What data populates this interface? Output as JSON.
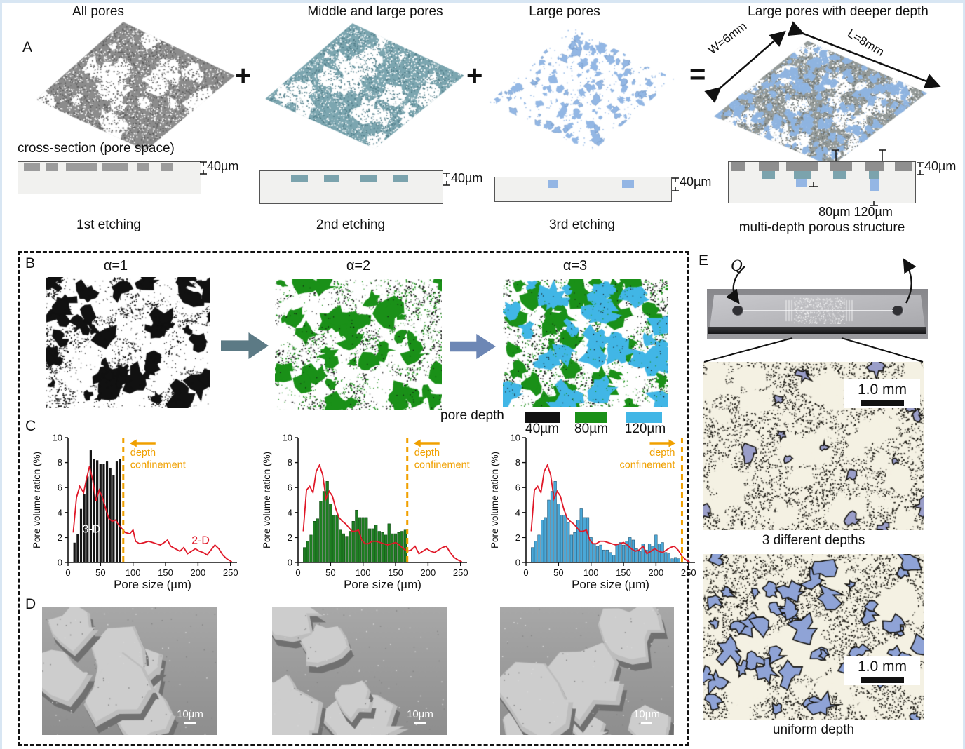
{
  "figure": {
    "panel_a": {
      "label": "A",
      "cross_section_heading": "cross-section (pore space)",
      "operators": [
        "+",
        "+",
        "="
      ],
      "columns": [
        {
          "title": "All pores",
          "etch_caption": "1st etching",
          "depth_label": "40µm"
        },
        {
          "title": "Middle and large pores",
          "etch_caption": "2nd etching",
          "depth_label": "40µm"
        },
        {
          "title": "Large pores",
          "etch_caption": "3rd etching",
          "depth_label": "40µm"
        },
        {
          "title": "Large pores with deeper depth",
          "etch_caption": "multi-depth porous structure",
          "depth_label": "40µm",
          "deep_labels": "80µm 120µm",
          "dim_w": "W=6mm",
          "dim_l": "L=8mm"
        }
      ]
    },
    "panel_b": {
      "label": "B",
      "map_titles": [
        "α=1",
        "α=2",
        "α=3"
      ],
      "legend_title": "pore depth",
      "legend": [
        {
          "label": "40µm",
          "color": "#111111"
        },
        {
          "label": "80µm",
          "color": "#1a9018"
        },
        {
          "label": "120µm",
          "color": "#41b6e6"
        }
      ]
    },
    "panel_c": {
      "label": "C"
    },
    "panel_d": {
      "label": "D",
      "scale_label": "10µm"
    },
    "panel_e": {
      "label": "E",
      "flow_label": "Q",
      "micrographs": [
        {
          "caption": "3 different depths",
          "scale_label": "1.0 mm"
        },
        {
          "caption": "uniform depth",
          "scale_label": "1.0 mm"
        }
      ]
    }
  },
  "chart_data": [
    {
      "type": "bar+line",
      "group": "α=1",
      "xlabel": "Pore size (µm)",
      "ylabel": "Pore volume ration (%)",
      "xlim": [
        0,
        260
      ],
      "ylim": [
        0,
        10
      ],
      "xticks": [
        0,
        50,
        100,
        150,
        200,
        250
      ],
      "yticks": [
        0,
        2,
        4,
        6,
        8,
        10
      ],
      "bar_color": "#161616",
      "bar_edge": "#ffffff",
      "bar_series_label": "3-D",
      "bar_x_start": 10,
      "bar_step": 5,
      "bar_values": [
        1.6,
        2.3,
        4.3,
        5.5,
        6.9,
        9.0,
        8.3,
        8.2,
        7.9,
        7.9,
        8.1,
        7.6,
        7.0,
        8.1,
        8.3
      ],
      "line_series_label": "2-D",
      "line_color": "#e01828",
      "line_points": [
        [
          8,
          2.4
        ],
        [
          13,
          5.2
        ],
        [
          18,
          6.1
        ],
        [
          24,
          5.6
        ],
        [
          28,
          6.6
        ],
        [
          33,
          7.7
        ],
        [
          38,
          6.6
        ],
        [
          43,
          4.9
        ],
        [
          48,
          5.8
        ],
        [
          53,
          5.2
        ],
        [
          58,
          4.3
        ],
        [
          63,
          3.5
        ],
        [
          68,
          3.3
        ],
        [
          73,
          3.4
        ],
        [
          78,
          3.0
        ],
        [
          83,
          2.7
        ],
        [
          88,
          2.4
        ],
        [
          95,
          2.3
        ],
        [
          100,
          2.6
        ],
        [
          104,
          1.7
        ],
        [
          110,
          1.5
        ],
        [
          118,
          1.6
        ],
        [
          124,
          1.7
        ],
        [
          130,
          1.6
        ],
        [
          136,
          1.5
        ],
        [
          142,
          1.4
        ],
        [
          148,
          1.6
        ],
        [
          153,
          1.8
        ],
        [
          158,
          1.3
        ],
        [
          165,
          1.1
        ],
        [
          172,
          0.9
        ],
        [
          178,
          1.2
        ],
        [
          184,
          0.7
        ],
        [
          190,
          0.9
        ],
        [
          196,
          1.1
        ],
        [
          202,
          0.9
        ],
        [
          208,
          0.8
        ],
        [
          214,
          0.6
        ],
        [
          220,
          1.0
        ],
        [
          226,
          1.4
        ],
        [
          232,
          1.1
        ],
        [
          238,
          0.6
        ],
        [
          244,
          0.3
        ],
        [
          252,
          0.05
        ]
      ],
      "confinement": {
        "x": 85,
        "label": "depth confinement",
        "arrow": "left",
        "color": "#f0a000"
      },
      "inline_labels": [
        {
          "text": "3-D",
          "x": 36,
          "y": 2.4,
          "color": "#ffffff"
        },
        {
          "text": "2-D",
          "x": 204,
          "y": 1.5,
          "color": "#e01828"
        }
      ]
    },
    {
      "type": "bar+line",
      "group": "α=2",
      "xlabel": "Pore size (µm)",
      "ylabel": "Pore volume ration (%)",
      "xlim": [
        0,
        260
      ],
      "ylim": [
        0,
        10
      ],
      "xticks": [
        0,
        50,
        100,
        150,
        200,
        250
      ],
      "yticks": [
        0,
        2,
        4,
        6,
        8,
        10
      ],
      "bar_color": "#1e7e22",
      "bar_edge": "#0c3f10",
      "bar_series_label": "3-D",
      "bar_x_start": 10,
      "bar_step": 5,
      "bar_values": [
        1.2,
        1.7,
        2.2,
        3.3,
        3.5,
        4.9,
        5.7,
        6.5,
        4.7,
        3.8,
        3.8,
        2.6,
        2.3,
        2.1,
        2.5,
        3.3,
        4.2,
        3.6,
        3.6,
        3.6,
        2.7,
        2.7,
        3.0,
        2.5,
        2.4,
        2.2,
        3.1,
        2.3,
        2.3,
        2.4,
        2.5,
        2.6
      ],
      "line_series_label": "2-D",
      "line_color": "#e01828",
      "line_points": [
        [
          8,
          2.5
        ],
        [
          13,
          5.8
        ],
        [
          18,
          6.1
        ],
        [
          23,
          5.6
        ],
        [
          28,
          7.3
        ],
        [
          33,
          7.8
        ],
        [
          38,
          7.0
        ],
        [
          43,
          5.1
        ],
        [
          48,
          5.7
        ],
        [
          53,
          5.3
        ],
        [
          58,
          4.3
        ],
        [
          63,
          3.6
        ],
        [
          68,
          3.3
        ],
        [
          73,
          3.1
        ],
        [
          78,
          2.8
        ],
        [
          83,
          2.5
        ],
        [
          88,
          2.5
        ],
        [
          93,
          2.6
        ],
        [
          98,
          1.8
        ],
        [
          103,
          1.5
        ],
        [
          108,
          1.5
        ],
        [
          114,
          1.7
        ],
        [
          120,
          1.7
        ],
        [
          126,
          1.6
        ],
        [
          132,
          1.5
        ],
        [
          138,
          1.4
        ],
        [
          144,
          1.5
        ],
        [
          150,
          1.6
        ],
        [
          156,
          1.4
        ],
        [
          162,
          1.1
        ],
        [
          168,
          0.9
        ],
        [
          174,
          1.0
        ],
        [
          180,
          1.3
        ],
        [
          186,
          0.7
        ],
        [
          192,
          0.9
        ],
        [
          198,
          1.1
        ],
        [
          204,
          0.9
        ],
        [
          210,
          0.8
        ],
        [
          216,
          1.0
        ],
        [
          222,
          1.2
        ],
        [
          228,
          1.3
        ],
        [
          234,
          0.8
        ],
        [
          240,
          0.4
        ],
        [
          246,
          0.2
        ],
        [
          252,
          0.05
        ]
      ],
      "confinement": {
        "x": 168,
        "label": "depth confinement",
        "arrow": "left",
        "color": "#f0a000"
      },
      "inline_labels": []
    },
    {
      "type": "bar+line",
      "group": "α=3",
      "xlabel": "Pore size (µm)",
      "ylabel": "Pore volume ration (%)",
      "xlim": [
        0,
        260
      ],
      "ylim": [
        0,
        10
      ],
      "xticks": [
        0,
        50,
        100,
        150,
        200,
        250
      ],
      "yticks": [
        0,
        2,
        4,
        6,
        8,
        10
      ],
      "bar_color": "#4aa8d8",
      "bar_edge": "#1b4a66",
      "bar_series_label": "3-D",
      "bar_x_start": 10,
      "bar_step": 5,
      "bar_values": [
        1.2,
        1.7,
        2.2,
        3.4,
        3.6,
        5.0,
        5.7,
        6.5,
        4.7,
        3.8,
        3.8,
        3.2,
        2.2,
        2.4,
        3.4,
        4.3,
        3.6,
        3.6,
        2.0,
        1.5,
        1.3,
        1.4,
        1.0,
        1.0,
        0.8,
        0.6,
        1.5,
        1.6,
        1.4,
        1.7,
        2.0,
        1.8,
        1.1,
        0.9,
        1.5,
        1.0,
        1.5,
        1.3,
        2.2,
        1.5,
        1.6,
        0.8,
        0.7,
        0.3,
        0.4,
        0.3
      ],
      "line_series_label": "2-D",
      "line_color": "#e01828",
      "line_points": [
        [
          8,
          2.5
        ],
        [
          13,
          5.8
        ],
        [
          18,
          6.1
        ],
        [
          23,
          5.6
        ],
        [
          28,
          7.3
        ],
        [
          33,
          7.8
        ],
        [
          38,
          7.0
        ],
        [
          43,
          5.1
        ],
        [
          48,
          5.7
        ],
        [
          53,
          5.3
        ],
        [
          58,
          4.3
        ],
        [
          63,
          3.6
        ],
        [
          68,
          3.3
        ],
        [
          73,
          3.1
        ],
        [
          78,
          2.8
        ],
        [
          83,
          2.5
        ],
        [
          88,
          2.5
        ],
        [
          93,
          2.6
        ],
        [
          98,
          1.8
        ],
        [
          103,
          1.5
        ],
        [
          108,
          1.5
        ],
        [
          114,
          1.7
        ],
        [
          120,
          1.7
        ],
        [
          126,
          1.6
        ],
        [
          132,
          1.5
        ],
        [
          138,
          1.4
        ],
        [
          144,
          1.5
        ],
        [
          150,
          1.6
        ],
        [
          156,
          1.4
        ],
        [
          162,
          1.1
        ],
        [
          168,
          0.9
        ],
        [
          174,
          1.0
        ],
        [
          180,
          1.3
        ],
        [
          186,
          0.7
        ],
        [
          192,
          0.9
        ],
        [
          198,
          1.1
        ],
        [
          204,
          0.9
        ],
        [
          210,
          0.8
        ],
        [
          216,
          1.0
        ],
        [
          222,
          1.2
        ],
        [
          228,
          1.3
        ],
        [
          234,
          1.0
        ],
        [
          240,
          0.5
        ],
        [
          246,
          0.2
        ],
        [
          252,
          0.02
        ]
      ],
      "confinement": {
        "x": 240,
        "label": "depth confinement",
        "arrow": "right",
        "color": "#f0a000"
      },
      "inline_labels": []
    }
  ]
}
